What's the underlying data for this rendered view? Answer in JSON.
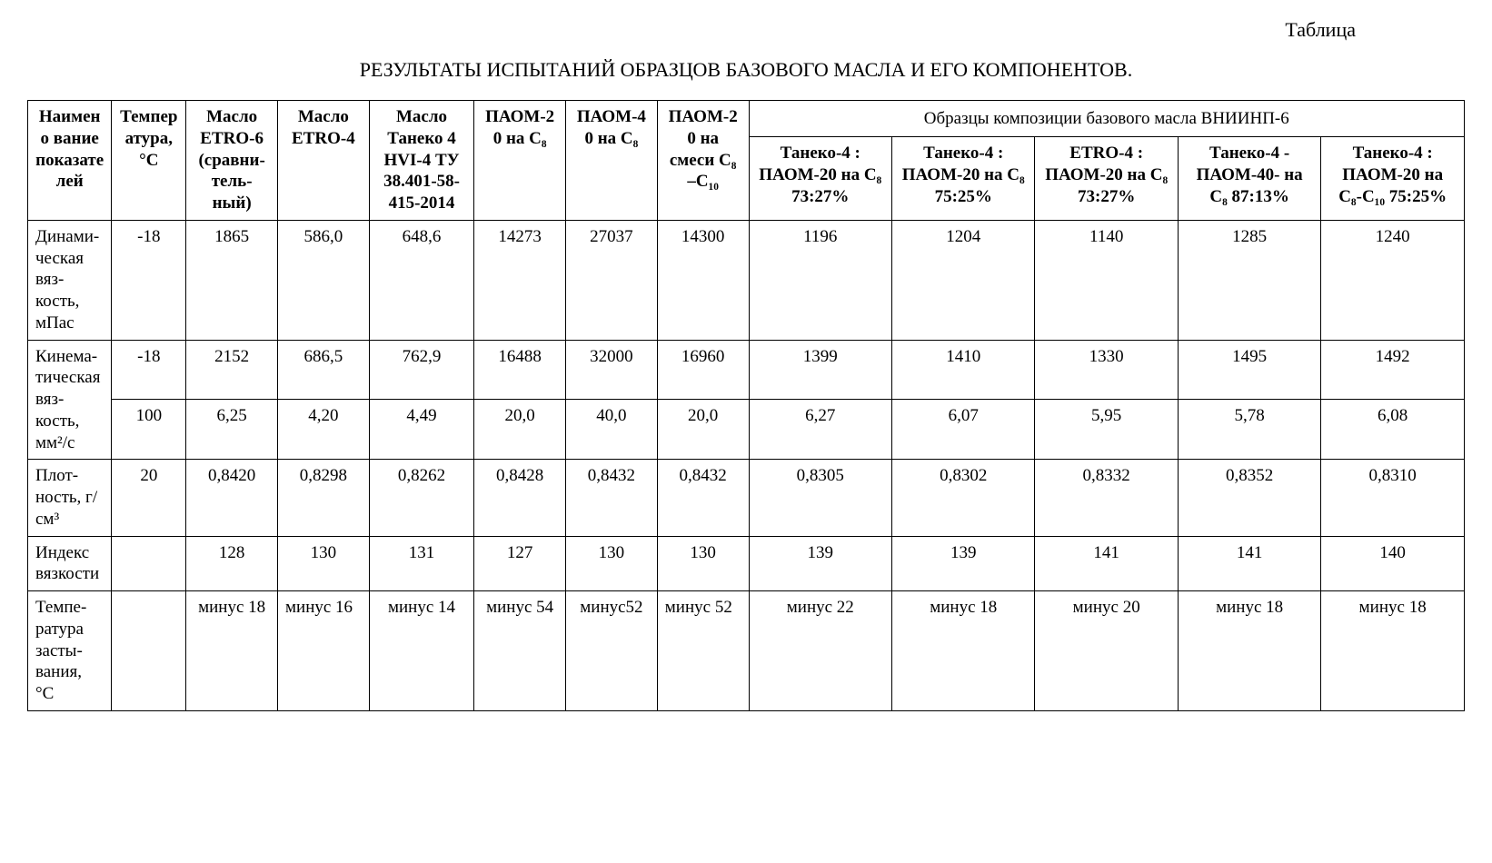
{
  "meta": {
    "top_label": "Таблица",
    "title": "РЕЗУЛЬТАТЫ ИСПЫТАНИЙ ОБРАЗЦОВ БАЗОВОГО МАСЛА И  ЕГО КОМПОНЕНТОВ."
  },
  "head": {
    "col_name": "Наимено вание показате лей",
    "col_temp": "Темпер атура, °C",
    "col_etro6": "Масло ETRO-6 (сравни-тель-ный)",
    "col_etro4": "Масло ETRO-4",
    "col_taneko4": "Масло Танеко 4 HVI-4 ТУ 38.401-58-415-2014",
    "col_paom20c8": "ПАОМ-20 на C₈",
    "col_paom40c8": "ПАОМ-40 на C₈",
    "col_paom20mix": "ПАОМ-20 на смеси C₈ –C₁₀",
    "group_head": "Образцы композиции базового масла ВНИИНП-6",
    "sub1": "Танеко-4 : ПАОМ-20 на C₈ 73:27%",
    "sub2": "Танеко-4 : ПАОМ-20 на C₈ 75:25%",
    "sub3": "ETRO-4 : ПАОМ-20 на C₈ 73:27%",
    "sub4": "Танеко-4 - ПАОМ-40- на C₈ 87:13%",
    "sub5": "Танеко-4 : ПАОМ-20 на C₈-C₁₀ 75:25%"
  },
  "body": {
    "row1": {
      "name": "Динами-ческая вяз-кость, мПас",
      "temp": "-18",
      "v": [
        "1865",
        "586,0",
        "648,6",
        "14273",
        "27037",
        "14300",
        "1196",
        "1204",
        "1140",
        "1285",
        "1240"
      ]
    },
    "row2": {
      "name": "Кинема-тическая вяз-кость, мм²/с",
      "tempA": "-18",
      "vA": [
        "2152",
        "686,5",
        "762,9",
        "16488",
        "32000",
        "16960",
        "1399",
        "1410",
        "1330",
        "1495",
        "1492"
      ],
      "tempB": "100",
      "vB": [
        "6,25",
        "4,20",
        "4,49",
        "20,0",
        "40,0",
        "20,0",
        "6,27",
        "6,07",
        "5,95",
        "5,78",
        "6,08"
      ]
    },
    "row3": {
      "name": "Плот-ность, г/см³",
      "temp": "20",
      "v": [
        "0,8420",
        "0,8298",
        "0,8262",
        "0,8428",
        "0,8432",
        "0,8432",
        "0,8305",
        "0,8302",
        "0,8332",
        "0,8352",
        "0,8310"
      ]
    },
    "row4": {
      "name": "Индекс вязкости",
      "temp": "",
      "v": [
        "128",
        "130",
        "131",
        "127",
        "130",
        "130",
        "139",
        "139",
        "141",
        "141",
        "140"
      ]
    },
    "row5": {
      "name": "Темпе-ратура засты-вания, °C",
      "temp": "",
      "v": [
        "минус 18",
        "минус 16",
        "минус 14",
        "минус 54",
        "минус52",
        "минус 52",
        "минус 22",
        "минус 18",
        "минус 20",
        "минус 18",
        "минус 18"
      ]
    }
  }
}
